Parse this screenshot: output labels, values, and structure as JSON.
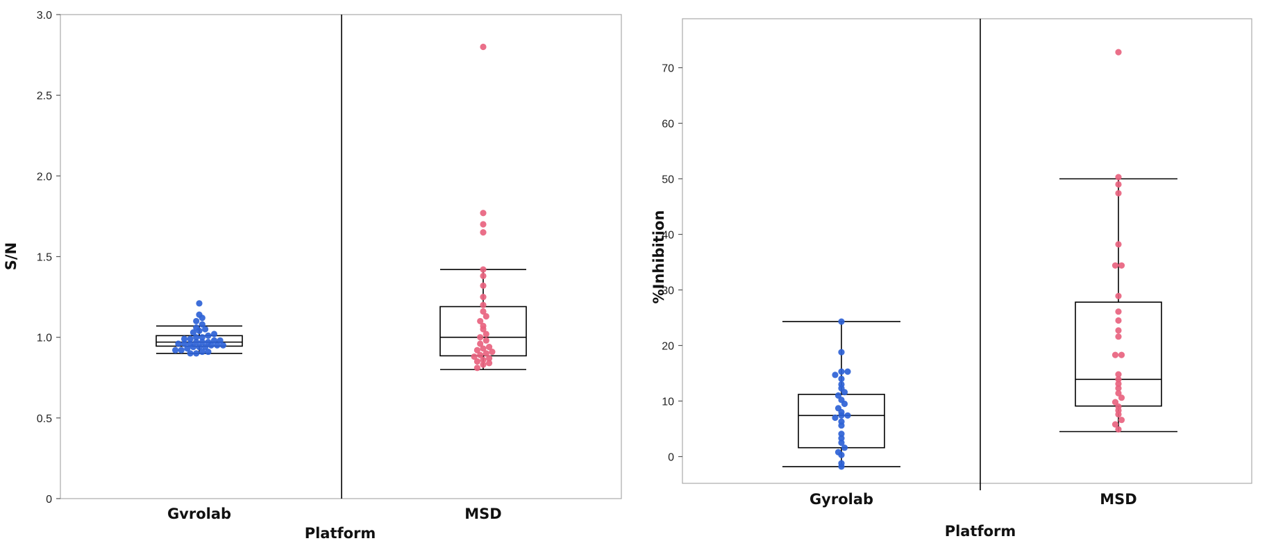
{
  "chart_data": [
    {
      "type": "box-plot",
      "xlabel": "Platform",
      "ylabel": "S/N",
      "categories": [
        "Gvrolab",
        "MSD"
      ],
      "ylim": [
        0,
        3.0
      ],
      "yticks": [
        "0",
        "0.5",
        "1.0",
        "1.5",
        "2.0",
        "2.5",
        "3.0"
      ],
      "grid": false,
      "series": [
        {
          "category": "Gvrolab",
          "color": "#2e62d6",
          "box": {
            "whisker_low": 0.9,
            "q1": 0.945,
            "median": 0.97,
            "q3": 1.01,
            "whisker_high": 1.07
          },
          "points": [
            0.9,
            0.9,
            0.91,
            0.91,
            0.92,
            0.92,
            0.93,
            0.94,
            0.94,
            0.94,
            0.95,
            0.95,
            0.95,
            0.96,
            0.96,
            0.96,
            0.97,
            0.97,
            0.97,
            0.98,
            0.98,
            0.99,
            0.99,
            1.0,
            1.0,
            1.01,
            1.02,
            1.03,
            1.04,
            1.05,
            1.06,
            1.08,
            1.1,
            1.12,
            1.14,
            1.21
          ]
        },
        {
          "category": "MSD",
          "color": "#e8637f",
          "box": {
            "whisker_low": 0.8,
            "q1": 0.885,
            "median": 1.0,
            "q3": 1.19,
            "whisker_high": 1.42
          },
          "points": [
            0.81,
            0.83,
            0.84,
            0.85,
            0.86,
            0.87,
            0.88,
            0.89,
            0.9,
            0.91,
            0.92,
            0.93,
            0.94,
            0.96,
            0.98,
            1.0,
            1.02,
            1.05,
            1.07,
            1.1,
            1.13,
            1.16,
            1.2,
            1.25,
            1.32,
            1.38,
            1.42,
            1.65,
            1.7,
            1.77,
            2.8
          ]
        }
      ]
    },
    {
      "type": "box-plot",
      "xlabel": "Platform",
      "ylabel": "%Inhibition",
      "categories": [
        "Gyrolab",
        "MSD"
      ],
      "ylim": [
        -5,
        76
      ],
      "yticks": [
        "0",
        "10",
        "20",
        "30",
        "40",
        "50",
        "60",
        "70"
      ],
      "grid": false,
      "series": [
        {
          "category": "Gyrolab",
          "color": "#2e62d6",
          "box": {
            "whisker_low": -1.8,
            "q1": 1.6,
            "median": 7.4,
            "q3": 11.2,
            "whisker_high": 24.3
          },
          "points": [
            -1.8,
            -1.2,
            0.3,
            0.8,
            1.6,
            2.5,
            3.3,
            4.1,
            5.6,
            6.3,
            7.0,
            7.4,
            7.4,
            8.0,
            8.7,
            9.5,
            10.2,
            11.0,
            11.6,
            12.3,
            13.0,
            14.0,
            14.7,
            15.3,
            15.3,
            18.8,
            24.3
          ]
        },
        {
          "category": "MSD",
          "color": "#e8637f",
          "box": {
            "whisker_low": 4.5,
            "q1": 9.1,
            "median": 13.9,
            "q3": 27.8,
            "whisker_high": 50.0
          },
          "points": [
            4.9,
            5.8,
            6.6,
            7.6,
            8.3,
            9.0,
            9.8,
            10.6,
            11.4,
            12.3,
            13.1,
            13.9,
            14.8,
            18.3,
            18.3,
            21.6,
            22.7,
            24.5,
            26.1,
            28.9,
            34.4,
            34.4,
            38.2,
            47.4,
            49.0,
            50.3,
            72.8
          ]
        }
      ]
    }
  ]
}
